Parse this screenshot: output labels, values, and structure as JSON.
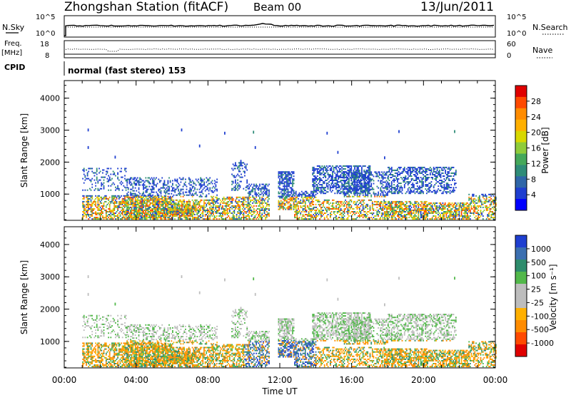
{
  "header": {
    "station": "Zhongshan Station (fitACF)",
    "beam": "Beam 00",
    "date": "13/Jun/2011"
  },
  "status_panels": {
    "nsky": {
      "label": "N.Sky",
      "left_ticks": [
        "10^5",
        "10^0"
      ]
    },
    "nsearch": {
      "label": "N.Search",
      "right_ticks": [
        "10^5",
        "10^0"
      ]
    },
    "freq": {
      "label_line1": "Freq.",
      "label_line2": "[MHz]",
      "left_ticks": [
        "18",
        "8"
      ]
    },
    "nave": {
      "label": "Nave",
      "right_ticks": [
        "60",
        "0"
      ]
    },
    "cpid": {
      "label": "CPID",
      "text": "normal (fast stereo) 153"
    }
  },
  "chart_data": [
    {
      "type": "heatmap",
      "name": "power",
      "ylabel": "Slant Range [km]",
      "xlabel": "Time UT",
      "ylim": [
        180,
        4550
      ],
      "yticks": [
        "1000",
        "2000",
        "3000",
        "4000"
      ],
      "xticks": [
        "00:00",
        "04:00",
        "08:00",
        "12:00",
        "16:00",
        "20:00",
        "00:00"
      ],
      "colorbar": {
        "label": "Power [dB]",
        "ticks": [
          "28",
          "24",
          "20",
          "16",
          "12",
          "8",
          "4"
        ],
        "colors": [
          "#e00000",
          "#ff4a00",
          "#ff8c00",
          "#ffb000",
          "#d8d800",
          "#8fcc3a",
          "#45a85a",
          "#2f8c78",
          "#2f66a8",
          "#1f3fd0",
          "#0000ff"
        ]
      }
    },
    {
      "type": "heatmap",
      "name": "velocity",
      "ylabel": "Slant Range [km]",
      "xlabel": "Time UT",
      "ylim": [
        180,
        4550
      ],
      "yticks": [
        "1000",
        "2000",
        "3000",
        "4000"
      ],
      "xticks": [
        "00:00",
        "04:00",
        "08:00",
        "12:00",
        "16:00",
        "20:00",
        "00:00"
      ],
      "colorbar": {
        "label": "Velocity [m s⁻¹]",
        "ticks": [
          "1000",
          "500",
          "100",
          "25",
          "-25",
          "-100",
          "-500",
          "-1000"
        ],
        "colors": [
          "#1f3fd0",
          "#3b6fb0",
          "#2e8c6c",
          "#52b84a",
          "#bdbdbd",
          "#bdbdbd",
          "#ffb000",
          "#ff8c00",
          "#ff4a00",
          "#e00000"
        ]
      }
    }
  ]
}
